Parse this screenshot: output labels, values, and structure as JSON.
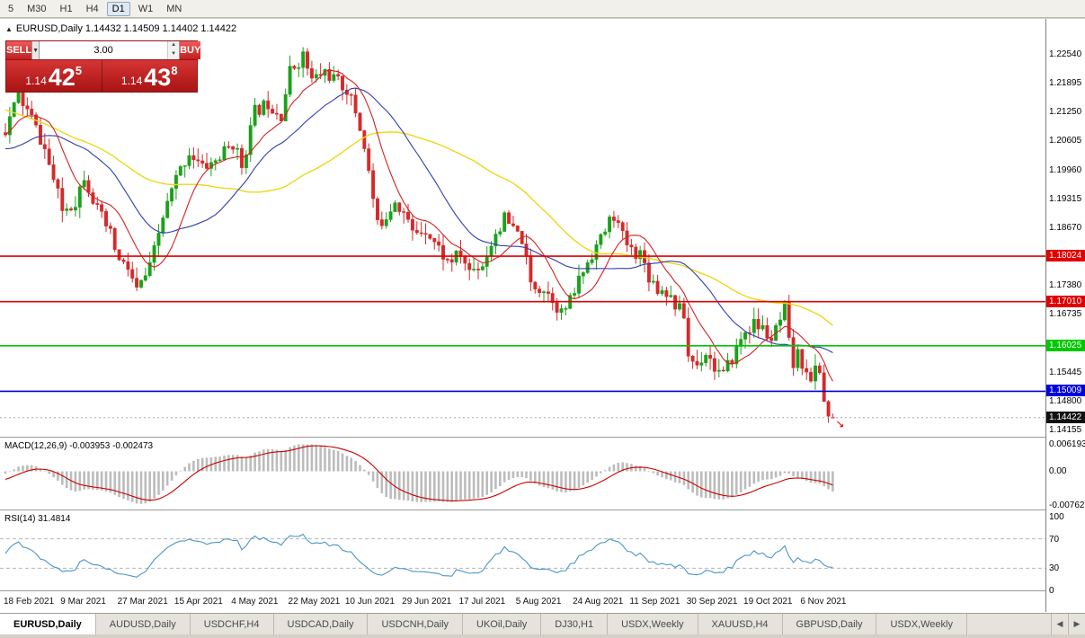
{
  "toolbar": {
    "timeframes": [
      {
        "label": "5",
        "active": false
      },
      {
        "label": "M30",
        "active": false
      },
      {
        "label": "H1",
        "active": false
      },
      {
        "label": "H4",
        "active": false
      },
      {
        "label": "D1",
        "active": true
      },
      {
        "label": "W1",
        "active": false
      },
      {
        "label": "MN",
        "active": false
      }
    ]
  },
  "chart": {
    "ohlc_text": "EURUSD,Daily 1.14432 1.14509 1.14402 1.14422",
    "collapse_icon": "▲"
  },
  "trade": {
    "sell_label": "SELL",
    "buy_label": "BUY",
    "volume": "3.00",
    "step_down_icon": "▼",
    "spin_up_icon": "▲",
    "spin_down_icon": "▼",
    "sell_prefix": "1.14",
    "sell_big": "42",
    "sell_sup": "5",
    "buy_prefix": "1.14",
    "buy_big": "43",
    "buy_sup": "8"
  },
  "indicators": {
    "macd_label": "MACD(12,26,9) -0.003953 -0.002473",
    "rsi_label": "RSI(14) 31.4814"
  },
  "chart_data": {
    "type": "candlestick",
    "symbol": "EURUSD",
    "timeframe": "Daily",
    "last": {
      "o": 1.14432,
      "h": 1.14509,
      "l": 1.14402,
      "c": 1.14422
    },
    "n_candles": 190,
    "pre_candles": 60,
    "seed": 11,
    "candle_colors": {
      "up": "#1ba11b",
      "down": "#d42a2a"
    },
    "waypoints": [
      [
        -60,
        1.225
      ],
      [
        -48,
        1.232
      ],
      [
        -36,
        1.213
      ],
      [
        -26,
        1.2165
      ],
      [
        -18,
        1.2
      ],
      [
        -12,
        1.1985
      ],
      [
        -8,
        1.2045
      ],
      [
        -4,
        1.2105
      ],
      [
        0,
        1.2085
      ],
      [
        3,
        1.216
      ],
      [
        6,
        1.211
      ],
      [
        9,
        1.204
      ],
      [
        13,
        1.1905
      ],
      [
        16,
        1.1925
      ],
      [
        18,
        1.1985
      ],
      [
        21,
        1.1905
      ],
      [
        24,
        1.185
      ],
      [
        26,
        1.179
      ],
      [
        28,
        1.1775
      ],
      [
        30,
        1.1725
      ],
      [
        33,
        1.1775
      ],
      [
        36,
        1.189
      ],
      [
        39,
        1.1975
      ],
      [
        42,
        1.2035
      ],
      [
        45,
        1.2
      ],
      [
        48,
        1.2015
      ],
      [
        52,
        1.2055
      ],
      [
        54,
        1.2005
      ],
      [
        57,
        1.2125
      ],
      [
        60,
        1.2145
      ],
      [
        63,
        1.212
      ],
      [
        65,
        1.2215
      ],
      [
        68,
        1.225
      ],
      [
        70,
        1.2195
      ],
      [
        73,
        1.2215
      ],
      [
        76,
        1.219
      ],
      [
        78,
        1.2175
      ],
      [
        80,
        1.2125
      ],
      [
        82,
        1.205
      ],
      [
        84,
        1.193
      ],
      [
        85,
        1.187
      ],
      [
        87,
        1.1895
      ],
      [
        89,
        1.193
      ],
      [
        91,
        1.19
      ],
      [
        93,
        1.1855
      ],
      [
        96,
        1.1865
      ],
      [
        99,
        1.182
      ],
      [
        101,
        1.179
      ],
      [
        104,
        1.1805
      ],
      [
        106,
        1.177
      ],
      [
        109,
        1.1785
      ],
      [
        112,
        1.1855
      ],
      [
        114,
        1.1885
      ],
      [
        116,
        1.186
      ],
      [
        118,
        1.184
      ],
      [
        120,
        1.174
      ],
      [
        123,
        1.173
      ],
      [
        125,
        1.171
      ],
      [
        127,
        1.1675
      ],
      [
        129,
        1.17
      ],
      [
        131,
        1.175
      ],
      [
        134,
        1.181
      ],
      [
        136,
        1.184
      ],
      [
        138,
        1.188
      ],
      [
        139,
        1.1895
      ],
      [
        141,
        1.1845
      ],
      [
        143,
        1.1815
      ],
      [
        145,
        1.181
      ],
      [
        147,
        1.176
      ],
      [
        149,
        1.173
      ],
      [
        151,
        1.1725
      ],
      [
        153,
        1.1695
      ],
      [
        155,
        1.167
      ],
      [
        156,
        1.158
      ],
      [
        158,
        1.156
      ],
      [
        160,
        1.159
      ],
      [
        162,
        1.1555
      ],
      [
        164,
        1.1535
      ],
      [
        166,
        1.1575
      ],
      [
        168,
        1.1615
      ],
      [
        169,
        1.1635
      ],
      [
        171,
        1.165
      ],
      [
        173,
        1.164
      ],
      [
        175,
        1.1615
      ],
      [
        177,
        1.1655
      ],
      [
        178,
        1.1685
      ],
      [
        179,
        1.1605
      ],
      [
        180,
        1.156
      ],
      [
        181,
        1.158
      ],
      [
        182,
        1.1565
      ],
      [
        183,
        1.1555
      ],
      [
        184,
        1.152
      ],
      [
        185,
        1.1555
      ],
      [
        186,
        1.1545
      ],
      [
        187,
        1.148
      ],
      [
        188,
        1.1445
      ],
      [
        189,
        1.14422
      ]
    ],
    "moving_averages": [
      {
        "period": 52,
        "color": "#ecd818",
        "width": 1.4
      },
      {
        "period": 24,
        "color": "#2f3fae",
        "width": 1.1
      },
      {
        "period": 10,
        "color": "#d42222",
        "width": 1.1
      }
    ],
    "levels": [
      {
        "price": 1.18024,
        "label": "1.18024",
        "color": "#e00000"
      },
      {
        "price": 1.1701,
        "label": "1.17010",
        "color": "#e00000"
      },
      {
        "price": 1.16025,
        "label": "1.16025",
        "color": "#00c800"
      },
      {
        "price": 1.15009,
        "label": "1.15009",
        "color": "#0000dd"
      }
    ],
    "current_price": {
      "value": 1.14422,
      "label": "1.14422",
      "color": "#111111"
    },
    "y_axis_ticks": [
      "1.22540",
      "1.21895",
      "1.21250",
      "1.20605",
      "1.19960",
      "1.19315",
      "1.18670",
      "1.17380",
      "1.16735",
      "1.15445",
      "1.14800",
      "1.14155"
    ],
    "x_tick_every": 13,
    "x_tick_labels": [
      "18 Feb 2021",
      "9 Mar 2021",
      "27 Mar 2021",
      "15 Apr 2021",
      "4 May 2021",
      "22 May 2021",
      "10 Jun 2021",
      "29 Jun 2021",
      "17 Jul 2021",
      "5 Aug 2021",
      "24 Aug 2021",
      "11 Sep 2021",
      "30 Sep 2021",
      "19 Oct 2021",
      "6 Nov 2021"
    ],
    "macd": {
      "fast": 12,
      "slow": 26,
      "signal": 9,
      "value": -0.003953,
      "signal_value": -0.002473,
      "hist_color": "#bcbcbc",
      "signal_color": "#cc0000",
      "axis": [
        {
          "label": "0.006193",
          "v": 0.006193
        },
        {
          "label": "0.00",
          "v": 0
        },
        {
          "label": "-0.00762",
          "v": -0.00762
        }
      ]
    },
    "rsi": {
      "period": 14,
      "value": 31.4814,
      "color": "#4a96c8",
      "levels": [
        70,
        30
      ],
      "axis": [
        {
          "label": "100",
          "v": 100
        },
        {
          "label": "70",
          "v": 70
        },
        {
          "label": "30",
          "v": 30
        },
        {
          "label": "0",
          "v": 0
        }
      ]
    },
    "trade_arrow_icon": "↘"
  },
  "tabbar": {
    "left_arrow": "◀",
    "right_arrow": "▶",
    "tabs": [
      {
        "label": "EURUSD,Daily",
        "active": true
      },
      {
        "label": "AUDUSD,Daily",
        "active": false
      },
      {
        "label": "USDCHF,H4",
        "active": false
      },
      {
        "label": "USDCAD,Daily",
        "active": false
      },
      {
        "label": "USDCNH,Daily",
        "active": false
      },
      {
        "label": "UKOil,Daily",
        "active": false
      },
      {
        "label": "DJ30,H1",
        "active": false
      },
      {
        "label": "USDX,Weekly",
        "active": false
      },
      {
        "label": "XAUUSD,H4",
        "active": false
      },
      {
        "label": "GBPUSD,Daily",
        "active": false
      },
      {
        "label": "USDX,Weekly",
        "active": false
      }
    ]
  }
}
